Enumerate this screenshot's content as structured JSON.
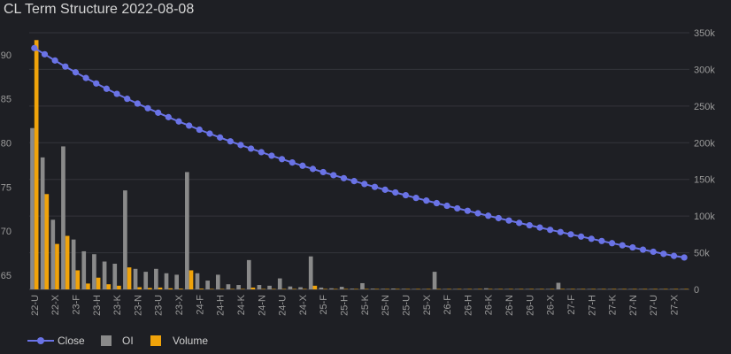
{
  "chart_data": {
    "type": "bar",
    "title": "CL Term Structure 2022-08-08",
    "categories": [
      "22-U",
      "22-V",
      "22-X",
      "22-Z",
      "23-F",
      "23-G",
      "23-H",
      "23-J",
      "23-K",
      "23-M",
      "23-N",
      "23-Q",
      "23-U",
      "23-V",
      "23-X",
      "23-Z",
      "24-F",
      "24-G",
      "24-H",
      "24-J",
      "24-K",
      "24-M",
      "24-N",
      "24-Q",
      "24-U",
      "24-V",
      "24-X",
      "24-Z",
      "25-F",
      "25-G",
      "25-H",
      "25-J",
      "25-K",
      "25-M",
      "25-N",
      "25-Q",
      "25-U",
      "25-V",
      "25-X",
      "25-Z",
      "26-F",
      "26-G",
      "26-H",
      "26-J",
      "26-K",
      "26-M",
      "26-N",
      "26-Q",
      "26-U",
      "26-V",
      "26-X",
      "26-Z",
      "27-F",
      "27-G",
      "27-H",
      "27-J",
      "27-K",
      "27-M",
      "27-N",
      "27-Q",
      "27-U",
      "27-V",
      "27-X",
      "27-Z"
    ],
    "x_tick_labels": [
      "22-U",
      "22-X",
      "23-F",
      "23-H",
      "23-K",
      "23-N",
      "23-U",
      "23-X",
      "24-F",
      "24-H",
      "24-K",
      "24-N",
      "24-U",
      "24-X",
      "25-F",
      "25-H",
      "25-K",
      "25-N",
      "25-U",
      "25-X",
      "26-F",
      "26-H",
      "26-K",
      "26-N",
      "26-U",
      "26-X",
      "27-F",
      "27-H",
      "27-K",
      "27-N",
      "27-U",
      "27-X"
    ],
    "y_left": {
      "ylim": [
        63.4,
        92.5
      ],
      "ticks": [
        "90",
        "85",
        "80",
        "75",
        "70",
        "65"
      ]
    },
    "y_right": {
      "ylim": [
        0,
        350000
      ],
      "ticks": [
        "350k",
        "300k",
        "250k",
        "200k",
        "150k",
        "100k",
        "50k",
        "0"
      ]
    },
    "series": [
      {
        "name": "Close",
        "kind": "line",
        "axis": "left",
        "color": "#6a73e6",
        "values": [
          90.76,
          90.06,
          89.35,
          88.67,
          88.01,
          87.37,
          86.75,
          86.15,
          85.57,
          85.01,
          84.47,
          83.94,
          83.43,
          82.93,
          82.44,
          81.97,
          81.51,
          81.06,
          80.62,
          80.19,
          79.77,
          79.36,
          78.96,
          78.56,
          78.17,
          77.79,
          77.42,
          77.06,
          76.7,
          76.35,
          76.01,
          75.68,
          75.35,
          75.02,
          74.7,
          74.39,
          74.08,
          73.77,
          73.47,
          73.18,
          72.88,
          72.59,
          72.31,
          72.03,
          71.75,
          71.48,
          71.21,
          70.94,
          70.67,
          70.41,
          70.15,
          69.9,
          69.64,
          69.39,
          69.14,
          68.89,
          68.64,
          68.4,
          68.16,
          67.91,
          67.67,
          67.43,
          67.2,
          67.02
        ]
      },
      {
        "name": "OI",
        "kind": "bar",
        "axis": "right",
        "color": "#8a8a8a",
        "values": [
          220000,
          180000,
          95000,
          195000,
          68000,
          52000,
          48000,
          38000,
          35000,
          135000,
          28000,
          24000,
          28000,
          22000,
          20000,
          160000,
          22000,
          12000,
          20000,
          7000,
          6000,
          40000,
          6000,
          5000,
          15000,
          4000,
          3000,
          45000,
          2500,
          1500,
          3500,
          1000,
          8500,
          1000,
          800,
          1200,
          800,
          600,
          400,
          24000,
          500,
          500,
          600,
          400,
          1500,
          400,
          400,
          300,
          300,
          300,
          500,
          9000,
          300,
          300,
          300,
          300,
          300,
          300,
          300,
          300,
          300,
          300,
          300,
          300
        ]
      },
      {
        "name": "Volume",
        "kind": "bar",
        "axis": "right",
        "color": "#f0a30a",
        "values": [
          340000,
          130000,
          62000,
          73000,
          26000,
          8000,
          16000,
          7000,
          5000,
          30000,
          3000,
          2000,
          2500,
          1500,
          1000,
          26000,
          1000,
          500,
          300,
          300,
          200,
          2500,
          200,
          200,
          500,
          200,
          200,
          5000,
          200,
          100,
          200,
          100,
          200,
          100,
          100,
          100,
          100,
          100,
          100,
          500,
          100,
          100,
          100,
          100,
          100,
          100,
          100,
          100,
          100,
          100,
          100,
          500,
          100,
          100,
          100,
          100,
          100,
          100,
          100,
          100,
          100,
          100,
          100,
          100
        ]
      }
    ],
    "legend_position": "bottom-left",
    "grid": true
  }
}
